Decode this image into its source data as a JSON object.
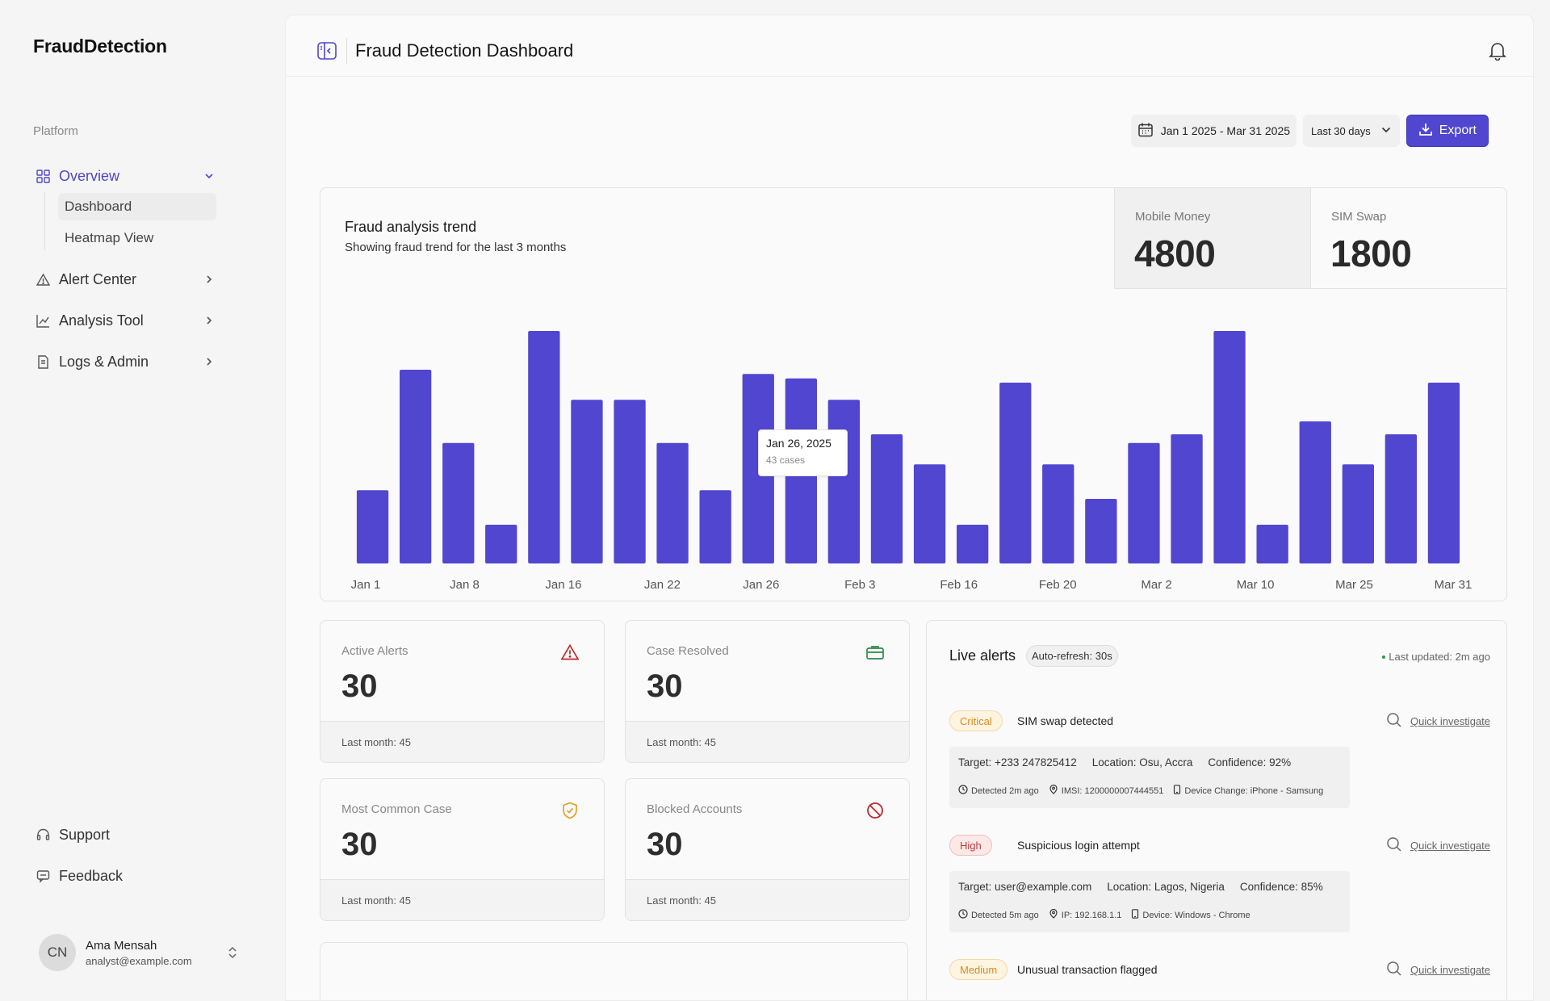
{
  "brand": "FraudDetection",
  "sidebar": {
    "section_label": "Platform",
    "items": [
      {
        "label": "Overview"
      },
      {
        "label": "Alert Center"
      },
      {
        "label": "Analysis Tool"
      },
      {
        "label": "Logs & Admin"
      }
    ],
    "subitems": [
      {
        "label": "Dashboard"
      },
      {
        "label": "Heatmap View"
      }
    ],
    "footer_items": [
      {
        "label": "Support"
      },
      {
        "label": "Feedback"
      }
    ],
    "user": {
      "initials": "CN",
      "name": "Ama Mensah",
      "email": "analyst@example.com"
    }
  },
  "header": {
    "title": "Fraud Detection Dashboard"
  },
  "controls": {
    "date_range": "Jan 1 2025 - Mar 31 2025",
    "period": "Last 30 days",
    "export_label": "Export"
  },
  "chart_card": {
    "stats": [
      {
        "label": "Mobile Money",
        "value": "4800"
      },
      {
        "label": "SIM Swap",
        "value": "1800"
      }
    ],
    "tooltip": {
      "date": "Jan 26, 2025",
      "value": "43 cases"
    }
  },
  "chart_data": {
    "type": "bar",
    "title": "Fraud analysis trend",
    "subtitle": "Showing fraud trend for the last 3 months",
    "tick_labels": [
      "Jan 1",
      "Jan 8",
      "Jan 16",
      "Jan 22",
      "Jan 26",
      "Feb 3",
      "Feb 16",
      "Feb 20",
      "Mar 2",
      "Mar 10",
      "Mar 25",
      "Mar 31"
    ],
    "values": [
      17,
      45,
      28,
      9,
      54,
      38,
      38,
      28,
      17,
      44,
      43,
      38,
      30,
      23,
      9,
      42,
      23,
      15,
      28,
      30,
      54,
      9,
      33,
      23,
      30,
      42
    ],
    "ylim": [
      0,
      60
    ],
    "highlight_index": 10,
    "bar_color": "#5046cf",
    "grid": false
  },
  "kpis": [
    {
      "label": "Active Alerts",
      "value": "30",
      "foot": "Last month: 45",
      "icon": "warning-triangle-icon",
      "color": "#c0282d"
    },
    {
      "label": "Case Resolved",
      "value": "30",
      "foot": "Last month: 45",
      "icon": "briefcase-icon",
      "color": "#2e8b4a"
    },
    {
      "label": "Most Common Case",
      "value": "30",
      "foot": "Last month: 45",
      "icon": "shield-check-icon",
      "color": "#e0a22a"
    },
    {
      "label": "Blocked Accounts",
      "value": "30",
      "foot": "Last month: 45",
      "icon": "blocked-icon",
      "color": "#c0282d"
    }
  ],
  "live_alerts": {
    "title": "Live alerts",
    "refresh": "Auto-refresh: 30s",
    "updated": "Last updated: 2m ago",
    "quick_label": "Quick investigate",
    "items": [
      {
        "severity": "Critical",
        "title": "SIM swap detected",
        "target": "Target: +233 247825412",
        "location": "Location: Osu, Accra",
        "confidence": "Confidence: 92%",
        "detected": "Detected 2m ago",
        "id_info": "IMSI: 1200000007444551",
        "device": "Device Change: iPhone - Samsung"
      },
      {
        "severity": "High",
        "title": "Suspicious login attempt",
        "target": "Target: user@example.com",
        "location": "Location: Lagos, Nigeria",
        "confidence": "Confidence: 85%",
        "detected": "Detected 5m ago",
        "id_info": "IP: 192.168.1.1",
        "device": "Device: Windows - Chrome"
      },
      {
        "severity": "Medium",
        "title": "Unusual transaction flagged"
      }
    ]
  }
}
